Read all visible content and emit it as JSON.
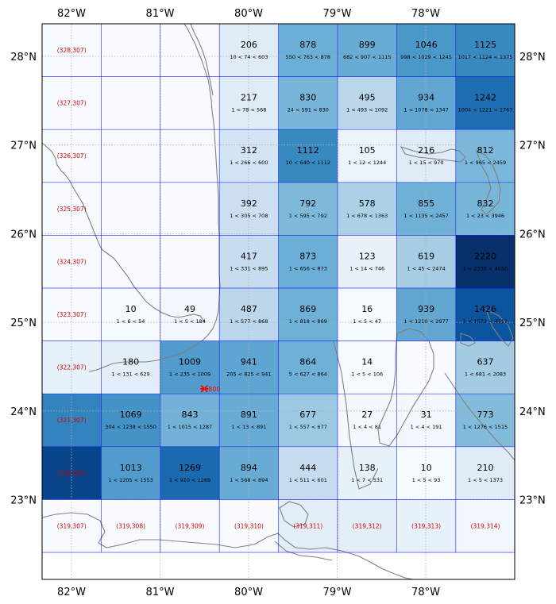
{
  "map": {
    "lon_ticks": [
      "82°W",
      "81°W",
      "80°W",
      "79°W",
      "78°W"
    ],
    "lat_ticks": [
      "28°N",
      "27°N",
      "26°N",
      "25°N",
      "24°N",
      "23°N"
    ],
    "lon_values": [
      -82,
      -81,
      -80,
      -79,
      -78
    ],
    "lat_values": [
      28,
      27,
      26,
      25,
      24,
      23
    ],
    "colors": {
      "coast": "#808080",
      "grid_line": "#0000ff",
      "graticule": "#b0b0b0",
      "index_text": "#d40000",
      "marker": "#ff0000"
    },
    "marker": {
      "label": "800",
      "lon": -80.5,
      "lat": 24.25
    },
    "grid": [
      {
        "row": 0,
        "col": 0,
        "index": "(328,307)",
        "value": null,
        "range": "",
        "intensity": 0.0
      },
      {
        "row": 0,
        "col": 1,
        "index": "",
        "value": null,
        "range": "",
        "intensity": 0.0
      },
      {
        "row": 0,
        "col": 2,
        "index": "",
        "value": null,
        "range": "",
        "intensity": 0.0
      },
      {
        "row": 0,
        "col": 3,
        "index": "",
        "value": "206",
        "range": "10 < 74 < 603",
        "intensity": 0.12
      },
      {
        "row": 0,
        "col": 4,
        "index": "",
        "value": "878",
        "range": "550 < 763 < 878",
        "intensity": 0.5
      },
      {
        "row": 0,
        "col": 5,
        "index": "",
        "value": "899",
        "range": "682 < 907 < 1115",
        "intensity": 0.51
      },
      {
        "row": 0,
        "col": 6,
        "index": "",
        "value": "1046",
        "range": "998 < 1029 < 1245",
        "intensity": 0.6
      },
      {
        "row": 0,
        "col": 7,
        "index": "",
        "value": "1125",
        "range": "1017 < 1124 < 1375",
        "intensity": 0.66
      },
      {
        "row": 1,
        "col": 0,
        "index": "(327,307)",
        "value": null,
        "range": "",
        "intensity": 0.0
      },
      {
        "row": 1,
        "col": 1,
        "index": "",
        "value": null,
        "range": "",
        "intensity": 0.0
      },
      {
        "row": 1,
        "col": 2,
        "index": "",
        "value": null,
        "range": "",
        "intensity": 0.0
      },
      {
        "row": 1,
        "col": 3,
        "index": "",
        "value": "217",
        "range": "1 < 78 < 568",
        "intensity": 0.12
      },
      {
        "row": 1,
        "col": 4,
        "index": "",
        "value": "830",
        "range": "24 < 591 < 830",
        "intensity": 0.47
      },
      {
        "row": 1,
        "col": 5,
        "index": "",
        "value": "495",
        "range": "1 < 493 < 1092",
        "intensity": 0.28
      },
      {
        "row": 1,
        "col": 6,
        "index": "",
        "value": "934",
        "range": "1 < 1078 < 1347",
        "intensity": 0.53
      },
      {
        "row": 1,
        "col": 7,
        "index": "",
        "value": "1242",
        "range": "1004 < 1221 < 1767",
        "intensity": 0.76
      },
      {
        "row": 2,
        "col": 0,
        "index": "(326,307)",
        "value": null,
        "range": "",
        "intensity": 0.0
      },
      {
        "row": 2,
        "col": 1,
        "index": "",
        "value": null,
        "range": "",
        "intensity": 0.0
      },
      {
        "row": 2,
        "col": 2,
        "index": "",
        "value": null,
        "range": "",
        "intensity": 0.0
      },
      {
        "row": 2,
        "col": 3,
        "index": "",
        "value": "312",
        "range": "1 < 266 < 600",
        "intensity": 0.18
      },
      {
        "row": 2,
        "col": 4,
        "index": "",
        "value": "1112",
        "range": "10 < 640 < 1112",
        "intensity": 0.66
      },
      {
        "row": 2,
        "col": 5,
        "index": "",
        "value": "105",
        "range": "1 < 12 < 1244",
        "intensity": 0.06
      },
      {
        "row": 2,
        "col": 6,
        "index": "",
        "value": "216",
        "range": "1 < 15 < 970",
        "intensity": 0.12
      },
      {
        "row": 2,
        "col": 7,
        "index": "",
        "value": "812",
        "range": "1 < 965 < 2459",
        "intensity": 0.46
      },
      {
        "row": 3,
        "col": 0,
        "index": "(325,307)",
        "value": null,
        "range": "",
        "intensity": 0.0
      },
      {
        "row": 3,
        "col": 1,
        "index": "",
        "value": null,
        "range": "",
        "intensity": 0.0
      },
      {
        "row": 3,
        "col": 2,
        "index": "",
        "value": null,
        "range": "",
        "intensity": 0.0
      },
      {
        "row": 3,
        "col": 3,
        "index": "",
        "value": "392",
        "range": "1 < 305 < 708",
        "intensity": 0.22
      },
      {
        "row": 3,
        "col": 4,
        "index": "",
        "value": "792",
        "range": "1 < 595 < 792",
        "intensity": 0.45
      },
      {
        "row": 3,
        "col": 5,
        "index": "",
        "value": "578",
        "range": "1 < 678 < 1363",
        "intensity": 0.33
      },
      {
        "row": 3,
        "col": 6,
        "index": "",
        "value": "855",
        "range": "1 < 1135 < 2457",
        "intensity": 0.49
      },
      {
        "row": 3,
        "col": 7,
        "index": "",
        "value": "832",
        "range": "1 < 23 < 3946",
        "intensity": 0.47
      },
      {
        "row": 4,
        "col": 0,
        "index": "(324,307)",
        "value": null,
        "range": "",
        "intensity": 0.0
      },
      {
        "row": 4,
        "col": 1,
        "index": "",
        "value": null,
        "range": "",
        "intensity": 0.0
      },
      {
        "row": 4,
        "col": 2,
        "index": "",
        "value": null,
        "range": "",
        "intensity": 0.0
      },
      {
        "row": 4,
        "col": 3,
        "index": "",
        "value": "417",
        "range": "1 < 331 < 895",
        "intensity": 0.24
      },
      {
        "row": 4,
        "col": 4,
        "index": "",
        "value": "873",
        "range": "1 < 656 < 873",
        "intensity": 0.5
      },
      {
        "row": 4,
        "col": 5,
        "index": "",
        "value": "123",
        "range": "1 < 14 < 746",
        "intensity": 0.07
      },
      {
        "row": 4,
        "col": 6,
        "index": "",
        "value": "619",
        "range": "1 < 45 < 2474",
        "intensity": 0.35
      },
      {
        "row": 4,
        "col": 7,
        "index": "",
        "value": "2220",
        "range": "1 < 2335 < 4650",
        "intensity": 1.0
      },
      {
        "row": 5,
        "col": 0,
        "index": "(323,307)",
        "value": null,
        "range": "",
        "intensity": 0.0
      },
      {
        "row": 5,
        "col": 1,
        "index": "",
        "value": "10",
        "range": "1 < 6 < 54",
        "intensity": 0.01
      },
      {
        "row": 5,
        "col": 2,
        "index": "",
        "value": "49",
        "range": "1 < 5 < 184",
        "intensity": 0.03
      },
      {
        "row": 5,
        "col": 3,
        "index": "",
        "value": "487",
        "range": "1 < 577 < 868",
        "intensity": 0.28
      },
      {
        "row": 5,
        "col": 4,
        "index": "",
        "value": "869",
        "range": "1 < 818 < 869",
        "intensity": 0.49
      },
      {
        "row": 5,
        "col": 5,
        "index": "",
        "value": "16",
        "range": "1 < 5 < 47",
        "intensity": 0.01
      },
      {
        "row": 5,
        "col": 6,
        "index": "",
        "value": "939",
        "range": "1 < 1210 < 2977",
        "intensity": 0.53
      },
      {
        "row": 5,
        "col": 7,
        "index": "",
        "value": "1426",
        "range": "1 < 1572 < 4111",
        "intensity": 0.86
      },
      {
        "row": 6,
        "col": 0,
        "index": "(322,307)",
        "value": null,
        "range": "",
        "intensity": 0.08
      },
      {
        "row": 6,
        "col": 1,
        "index": "",
        "value": "180",
        "range": "1 < 131 < 629",
        "intensity": 0.1
      },
      {
        "row": 6,
        "col": 2,
        "index": "",
        "value": "1009",
        "range": "1 < 235 < 1009",
        "intensity": 0.58
      },
      {
        "row": 6,
        "col": 3,
        "index": "",
        "value": "941",
        "range": "205 < 825 < 941",
        "intensity": 0.54
      },
      {
        "row": 6,
        "col": 4,
        "index": "",
        "value": "864",
        "range": "5 < 627 < 864",
        "intensity": 0.49
      },
      {
        "row": 6,
        "col": 5,
        "index": "",
        "value": "14",
        "range": "1 < 5 < 106",
        "intensity": 0.01
      },
      {
        "row": 6,
        "col": 6,
        "index": "",
        "value": null,
        "range": "",
        "intensity": 0.0
      },
      {
        "row": 6,
        "col": 7,
        "index": "",
        "value": "637",
        "range": "1 < 681 < 2083",
        "intensity": 0.36
      },
      {
        "row": 7,
        "col": 0,
        "index": "(321,307)",
        "value": null,
        "range": "",
        "intensity": 0.68
      },
      {
        "row": 7,
        "col": 1,
        "index": "",
        "value": "1069",
        "range": "304 < 1238 < 1550",
        "intensity": 0.62
      },
      {
        "row": 7,
        "col": 2,
        "index": "",
        "value": "843",
        "range": "1 < 1015 < 1287",
        "intensity": 0.48
      },
      {
        "row": 7,
        "col": 3,
        "index": "",
        "value": "891",
        "range": "1 < 13 < 891",
        "intensity": 0.51
      },
      {
        "row": 7,
        "col": 4,
        "index": "",
        "value": "677",
        "range": "1 < 557 < 677",
        "intensity": 0.38
      },
      {
        "row": 7,
        "col": 5,
        "index": "",
        "value": "27",
        "range": "1 < 4 < 81",
        "intensity": 0.02
      },
      {
        "row": 7,
        "col": 6,
        "index": "",
        "value": "31",
        "range": "1 < 4 < 191",
        "intensity": 0.02
      },
      {
        "row": 7,
        "col": 7,
        "index": "",
        "value": "773",
        "range": "1 < 1276 < 1515",
        "intensity": 0.44
      },
      {
        "row": 8,
        "col": 0,
        "index": "(320,307)",
        "value": null,
        "range": "",
        "intensity": 0.92
      },
      {
        "row": 8,
        "col": 1,
        "index": "",
        "value": "1013",
        "range": "1 < 1205 < 1553",
        "intensity": 0.58
      },
      {
        "row": 8,
        "col": 2,
        "index": "",
        "value": "1269",
        "range": "1 < 910 < 1269",
        "intensity": 0.78
      },
      {
        "row": 8,
        "col": 3,
        "index": "",
        "value": "894",
        "range": "1 < 568 < 894",
        "intensity": 0.51
      },
      {
        "row": 8,
        "col": 4,
        "index": "",
        "value": "444",
        "range": "1 < 511 < 601",
        "intensity": 0.25
      },
      {
        "row": 8,
        "col": 5,
        "index": "",
        "value": "138",
        "range": "1 < 7 < 531",
        "intensity": 0.08
      },
      {
        "row": 8,
        "col": 6,
        "index": "",
        "value": "10",
        "range": "1 < 5 < 93",
        "intensity": 0.01
      },
      {
        "row": 8,
        "col": 7,
        "index": "",
        "value": "210",
        "range": "1 < 5 < 1373",
        "intensity": 0.12
      },
      {
        "row": 9,
        "col": 0,
        "index": "(319,307)",
        "value": null,
        "range": "",
        "intensity": 0.0
      },
      {
        "row": 9,
        "col": 1,
        "index": "(319,308)",
        "value": null,
        "range": "",
        "intensity": 0.0
      },
      {
        "row": 9,
        "col": 2,
        "index": "(319,309)",
        "value": null,
        "range": "",
        "intensity": 0.0
      },
      {
        "row": 9,
        "col": 3,
        "index": "(319,310)",
        "value": null,
        "range": "",
        "intensity": 0.0
      },
      {
        "row": 9,
        "col": 4,
        "index": "(319,311)",
        "value": null,
        "range": "",
        "intensity": 0.1
      },
      {
        "row": 9,
        "col": 5,
        "index": "(319,312)",
        "value": null,
        "range": "",
        "intensity": 0.1
      },
      {
        "row": 9,
        "col": 6,
        "index": "(319,313)",
        "value": null,
        "range": "",
        "intensity": 0.08
      },
      {
        "row": 9,
        "col": 7,
        "index": "(319,314)",
        "value": null,
        "range": "",
        "intensity": 0.03
      }
    ]
  }
}
